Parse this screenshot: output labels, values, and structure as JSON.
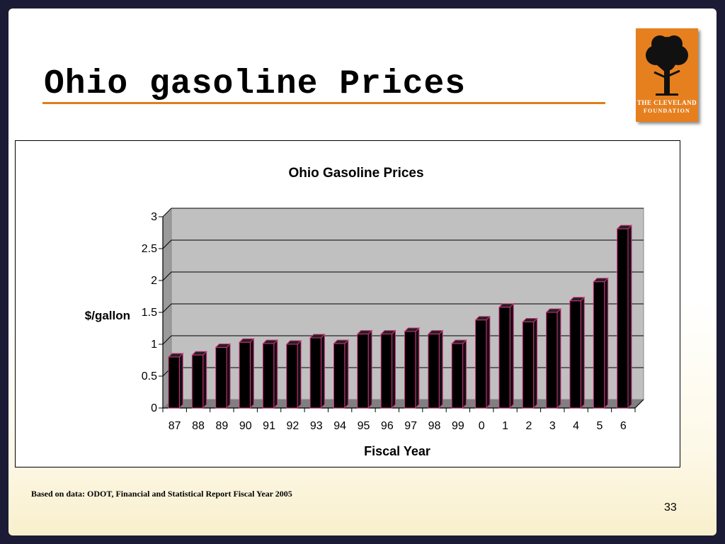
{
  "slide": {
    "title": "Ohio gasoline Prices",
    "source_note": "Based on data: ODOT, Financial and Statistical Report Fiscal Year 2005",
    "page_number": "33"
  },
  "logo": {
    "line1": "THE CLEVELAND",
    "line2": "FOUNDATION",
    "icon": "tree-icon"
  },
  "colors": {
    "title_rule": "#e07d1c",
    "logo_bg": "#e6801f",
    "plot_bg": "#c0c0c0",
    "bar_fill": "#000000",
    "bar_edge": "#d4307e"
  },
  "chart_data": {
    "type": "bar",
    "title": "Ohio Gasoline Prices",
    "xlabel": "Fiscal Year",
    "ylabel": "$/gallon",
    "ylim": [
      0,
      3
    ],
    "yticks": [
      "0",
      "0.5",
      "1",
      "1.5",
      "2",
      "2.5",
      "3"
    ],
    "grid": true,
    "categories": [
      "87",
      "88",
      "89",
      "90",
      "91",
      "92",
      "93",
      "94",
      "95",
      "96",
      "97",
      "98",
      "99",
      "0",
      "1",
      "2",
      "3",
      "4",
      "5",
      "6"
    ],
    "values": [
      0.8,
      0.83,
      0.95,
      1.03,
      1.01,
      1.0,
      1.1,
      1.01,
      1.16,
      1.16,
      1.2,
      1.16,
      1.01,
      1.38,
      1.58,
      1.35,
      1.5,
      1.68,
      1.98,
      2.81
    ]
  }
}
